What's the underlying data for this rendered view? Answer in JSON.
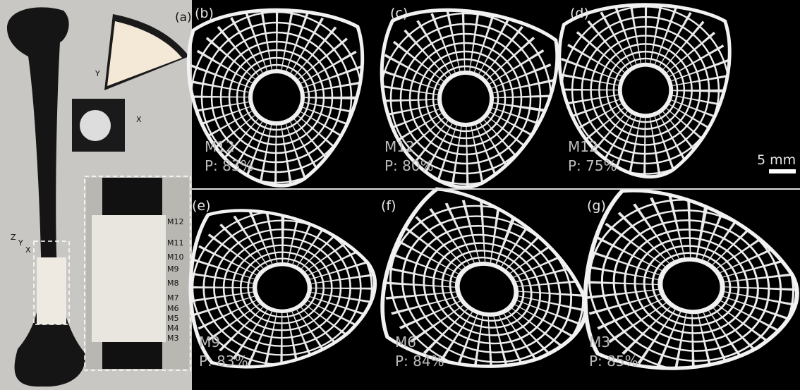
{
  "panel_a": {
    "label": "(a)",
    "axes": {
      "inset_y": "Y",
      "inset_x": "X",
      "z": "Z",
      "y": "Y",
      "x": "X"
    },
    "modules": [
      "M12",
      "M11",
      "M10",
      "M9",
      "M8",
      "M7",
      "M6",
      "M5",
      "M4",
      "M3"
    ]
  },
  "panels": [
    {
      "label": "(b)",
      "module": "M12",
      "porosity": "P: 83%"
    },
    {
      "label": "(c)",
      "module": "M12",
      "porosity": "P: 80%"
    },
    {
      "label": "(d)",
      "module": "M12",
      "porosity": "P: 75%"
    },
    {
      "label": "(e)",
      "module": "M9",
      "porosity": "P: 83%"
    },
    {
      "label": "(f)",
      "module": "M6",
      "porosity": "P: 84%"
    },
    {
      "label": "(g)",
      "module": "M3",
      "porosity": "P: 85%"
    }
  ],
  "scale_bar": "5 mm"
}
